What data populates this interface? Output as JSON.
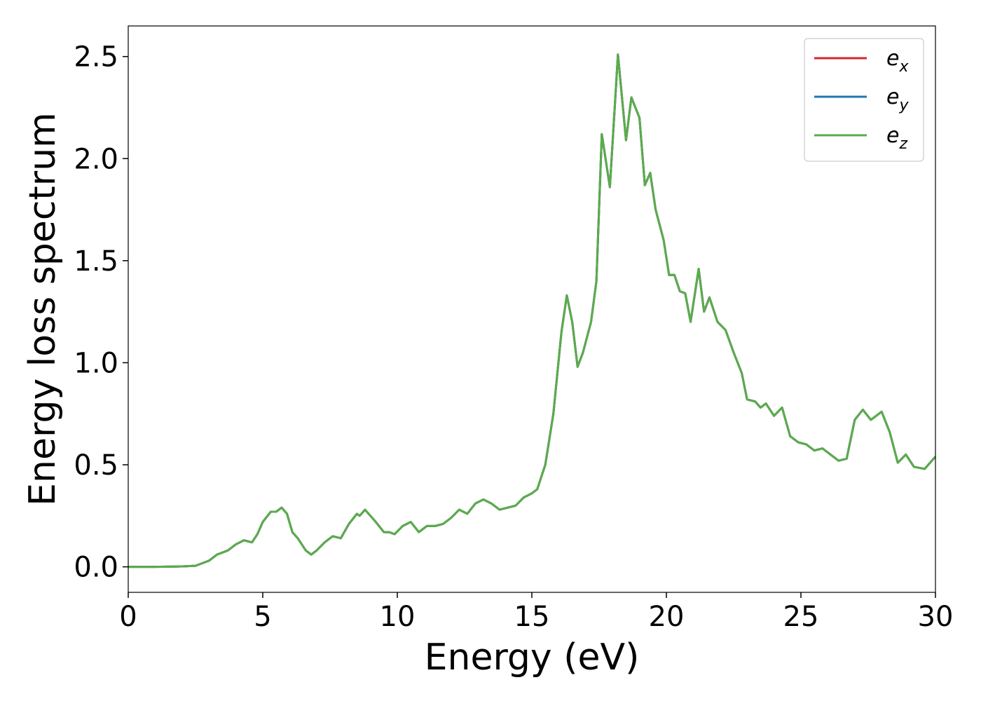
{
  "chart_data": {
    "type": "line",
    "xlabel": "Energy (eV)",
    "ylabel": "Energy loss spectrum",
    "x": [
      0,
      1,
      2,
      2.5,
      3.0,
      3.3,
      3.7,
      4.0,
      4.3,
      4.6,
      4.8,
      5.0,
      5.3,
      5.5,
      5.7,
      5.9,
      6.1,
      6.3,
      6.6,
      6.8,
      7.0,
      7.3,
      7.6,
      7.9,
      8.2,
      8.5,
      8.6,
      8.8,
      9.0,
      9.2,
      9.5,
      9.7,
      9.9,
      10.2,
      10.5,
      10.8,
      11.1,
      11.4,
      11.7,
      12.0,
      12.3,
      12.6,
      12.9,
      13.2,
      13.5,
      13.8,
      14.1,
      14.4,
      14.7,
      15.0,
      15.2,
      15.5,
      15.8,
      16.1,
      16.3,
      16.5,
      16.7,
      16.9,
      17.2,
      17.4,
      17.6,
      17.9,
      18.2,
      18.5,
      18.7,
      19.0,
      19.2,
      19.4,
      19.6,
      19.9,
      20.1,
      20.3,
      20.5,
      20.7,
      20.9,
      21.2,
      21.4,
      21.6,
      21.9,
      22.2,
      22.5,
      22.8,
      23.0,
      23.3,
      23.5,
      23.7,
      24.0,
      24.3,
      24.6,
      24.9,
      25.2,
      25.5,
      25.8,
      26.1,
      26.4,
      26.7,
      27.0,
      27.3,
      27.6,
      28.0,
      28.3,
      28.6,
      28.9,
      29.2,
      29.6,
      30.0
    ],
    "series": [
      {
        "name": "e_x",
        "color": "#d62728",
        "values": [
          0,
          0,
          0.002,
          0.005,
          0.03,
          0.06,
          0.08,
          0.11,
          0.13,
          0.12,
          0.16,
          0.22,
          0.27,
          0.27,
          0.29,
          0.26,
          0.17,
          0.14,
          0.08,
          0.06,
          0.08,
          0.12,
          0.15,
          0.14,
          0.21,
          0.26,
          0.25,
          0.28,
          0.25,
          0.22,
          0.17,
          0.17,
          0.16,
          0.2,
          0.22,
          0.17,
          0.2,
          0.2,
          0.21,
          0.24,
          0.28,
          0.26,
          0.31,
          0.33,
          0.31,
          0.28,
          0.29,
          0.3,
          0.34,
          0.36,
          0.38,
          0.5,
          0.75,
          1.15,
          1.33,
          1.2,
          0.98,
          1.05,
          1.2,
          1.4,
          2.12,
          1.86,
          2.51,
          2.09,
          2.3,
          2.2,
          1.87,
          1.93,
          1.75,
          1.6,
          1.43,
          1.43,
          1.35,
          1.34,
          1.2,
          1.46,
          1.25,
          1.32,
          1.2,
          1.16,
          1.05,
          0.95,
          0.82,
          0.81,
          0.78,
          0.8,
          0.74,
          0.78,
          0.64,
          0.61,
          0.6,
          0.57,
          0.58,
          0.55,
          0.52,
          0.53,
          0.72,
          0.77,
          0.72,
          0.76,
          0.66,
          0.51,
          0.55,
          0.49,
          0.48,
          0.54
        ]
      },
      {
        "name": "e_y",
        "color": "#1f77b4",
        "values": [
          0,
          0,
          0.002,
          0.005,
          0.03,
          0.06,
          0.08,
          0.11,
          0.13,
          0.12,
          0.16,
          0.22,
          0.27,
          0.27,
          0.29,
          0.26,
          0.17,
          0.14,
          0.08,
          0.06,
          0.08,
          0.12,
          0.15,
          0.14,
          0.21,
          0.26,
          0.25,
          0.28,
          0.25,
          0.22,
          0.17,
          0.17,
          0.16,
          0.2,
          0.22,
          0.17,
          0.2,
          0.2,
          0.21,
          0.24,
          0.28,
          0.26,
          0.31,
          0.33,
          0.31,
          0.28,
          0.29,
          0.3,
          0.34,
          0.36,
          0.38,
          0.5,
          0.75,
          1.15,
          1.33,
          1.2,
          0.98,
          1.05,
          1.2,
          1.4,
          2.12,
          1.86,
          2.51,
          2.09,
          2.3,
          2.2,
          1.87,
          1.93,
          1.75,
          1.6,
          1.43,
          1.43,
          1.35,
          1.34,
          1.2,
          1.46,
          1.25,
          1.32,
          1.2,
          1.16,
          1.05,
          0.95,
          0.82,
          0.81,
          0.78,
          0.8,
          0.74,
          0.78,
          0.64,
          0.61,
          0.6,
          0.57,
          0.58,
          0.55,
          0.52,
          0.53,
          0.72,
          0.77,
          0.72,
          0.76,
          0.66,
          0.51,
          0.55,
          0.49,
          0.48,
          0.54
        ]
      },
      {
        "name": "e_z",
        "color": "#5aac4b",
        "values": [
          0,
          0,
          0.002,
          0.005,
          0.03,
          0.06,
          0.08,
          0.11,
          0.13,
          0.12,
          0.16,
          0.22,
          0.27,
          0.27,
          0.29,
          0.26,
          0.17,
          0.14,
          0.08,
          0.06,
          0.08,
          0.12,
          0.15,
          0.14,
          0.21,
          0.26,
          0.25,
          0.28,
          0.25,
          0.22,
          0.17,
          0.17,
          0.16,
          0.2,
          0.22,
          0.17,
          0.2,
          0.2,
          0.21,
          0.24,
          0.28,
          0.26,
          0.31,
          0.33,
          0.31,
          0.28,
          0.29,
          0.3,
          0.34,
          0.36,
          0.38,
          0.5,
          0.75,
          1.15,
          1.33,
          1.2,
          0.98,
          1.05,
          1.2,
          1.4,
          2.12,
          1.86,
          2.51,
          2.09,
          2.3,
          2.2,
          1.87,
          1.93,
          1.75,
          1.6,
          1.43,
          1.43,
          1.35,
          1.34,
          1.2,
          1.46,
          1.25,
          1.32,
          1.2,
          1.16,
          1.05,
          0.95,
          0.82,
          0.81,
          0.78,
          0.8,
          0.74,
          0.78,
          0.64,
          0.61,
          0.6,
          0.57,
          0.58,
          0.55,
          0.52,
          0.53,
          0.72,
          0.77,
          0.72,
          0.76,
          0.66,
          0.51,
          0.55,
          0.49,
          0.48,
          0.54
        ]
      }
    ],
    "xlim": [
      0,
      30
    ],
    "xticks": [
      0,
      5,
      10,
      15,
      20,
      25,
      30
    ],
    "ylim": [
      -0.125,
      2.65
    ],
    "yticks": [
      {
        "value": 0,
        "label": "0.0"
      },
      0.5,
      {
        "value": 1,
        "label": "1.0"
      },
      1.5,
      {
        "value": 2,
        "label": "2.0"
      },
      2.5
    ],
    "legend": "upper right",
    "grid": false
  }
}
